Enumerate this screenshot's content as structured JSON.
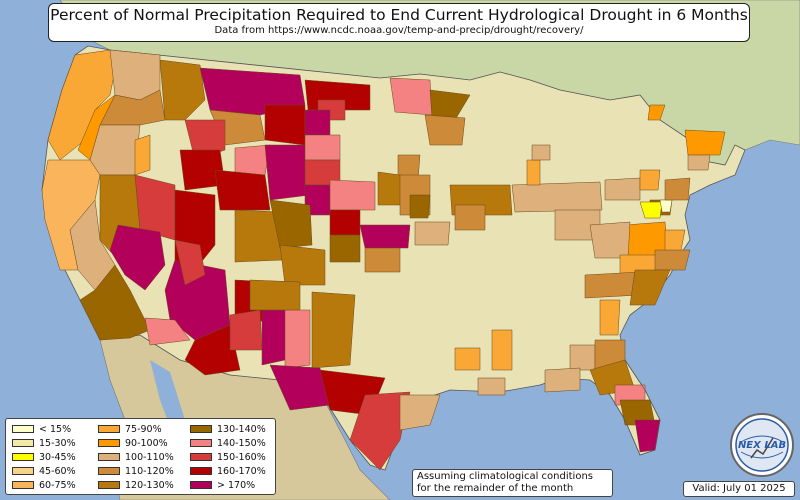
{
  "header": {
    "title": "Percent of Normal Precipitation Required to End Current Hydrological Drought in 6 Months",
    "subtitle": "Data from https://www.ncdc.noaa.gov/temp-and-precip/drought/recovery/"
  },
  "legend": {
    "items": [
      {
        "label": "< 15%",
        "color": "#ffffcc"
      },
      {
        "label": "15-30%",
        "color": "#f5e9a8"
      },
      {
        "label": "30-45%",
        "color": "#ffff00"
      },
      {
        "label": "45-60%",
        "color": "#f7d28a"
      },
      {
        "label": "60-75%",
        "color": "#f9b45c"
      },
      {
        "label": "75-90%",
        "color": "#f9a836"
      },
      {
        "label": "90-100%",
        "color": "#ff9900"
      },
      {
        "label": "100-110%",
        "color": "#ddb07c"
      },
      {
        "label": "110-120%",
        "color": "#cd8a38"
      },
      {
        "label": "120-130%",
        "color": "#b8790c"
      },
      {
        "label": "130-140%",
        "color": "#996600"
      },
      {
        "label": "140-150%",
        "color": "#f48282"
      },
      {
        "label": "150-160%",
        "color": "#d63c3c"
      },
      {
        "label": "160-170%",
        "color": "#b30000"
      },
      {
        "label": "> 170%",
        "color": "#b3005b"
      }
    ]
  },
  "note": {
    "line1": "Assuming climatological conditions",
    "line2": "for the remainder of the month"
  },
  "valid": "Valid: July 01 2025",
  "logo": {
    "text": "NEX LAB"
  },
  "colors": {
    "ocean": "#8fb0d8",
    "land": "#e8e2b4",
    "canada": "#c9d6a6",
    "mexico": "#d6c89a"
  }
}
